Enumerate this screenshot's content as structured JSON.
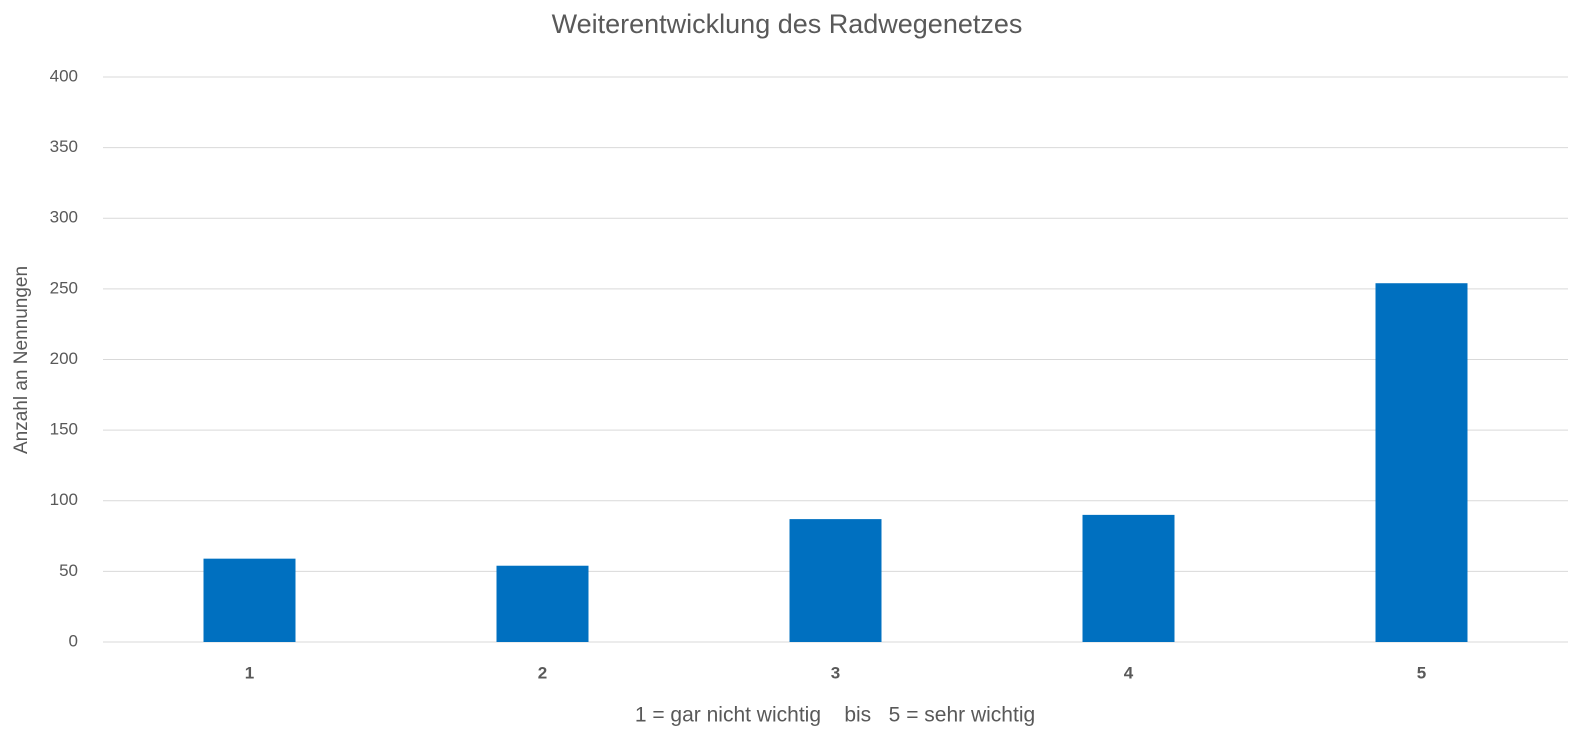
{
  "chart_data": {
    "type": "bar",
    "title": "Weiterentwicklung des Radwegenetzes",
    "x_label": "1 = gar nicht wichtig    bis   5 = sehr wichtig",
    "y_label": "Anzahl an Nennungen",
    "categories": [
      "1",
      "2",
      "3",
      "4",
      "5"
    ],
    "values": [
      59,
      54,
      87,
      90,
      254
    ],
    "color": "#0070c0",
    "ylim": [
      0,
      400
    ],
    "yticks": [
      0,
      50,
      100,
      150,
      200,
      250,
      300,
      350,
      400
    ],
    "grid": true
  }
}
